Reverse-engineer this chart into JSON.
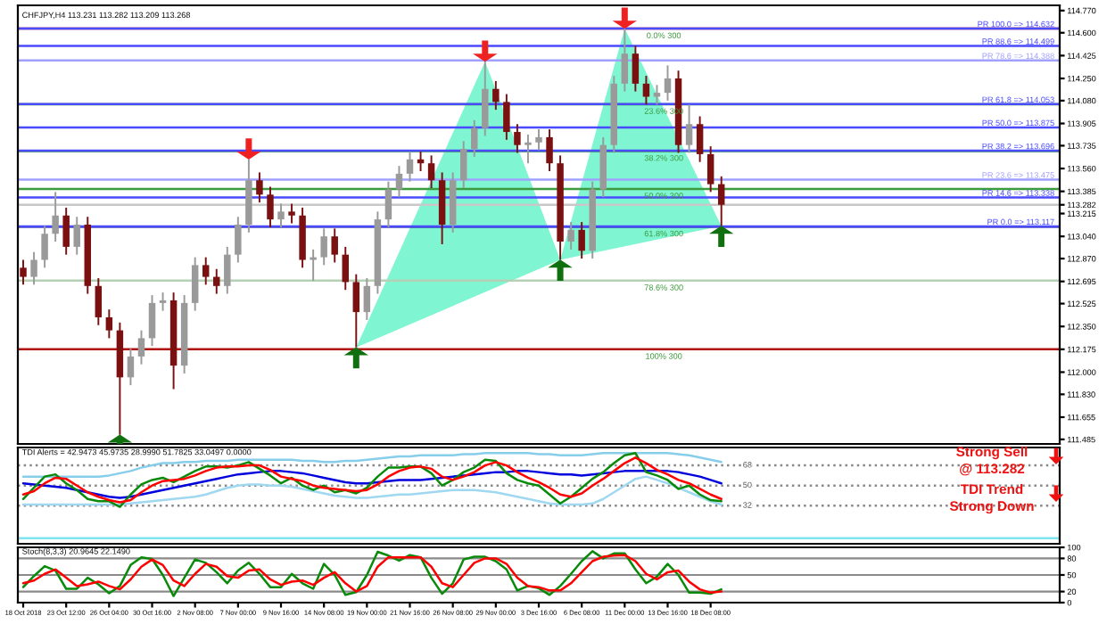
{
  "chart_data": [
    {
      "type": "candlestick",
      "title": "CHFJPY,H4 113.231 113.282 113.209 113.268",
      "categories": [
        null,
        null,
        null,
        null,
        null,
        null,
        null,
        null,
        null,
        null,
        null,
        null,
        null,
        null,
        null,
        null,
        null,
        null,
        null,
        null,
        null,
        null,
        null,
        null,
        null,
        null,
        null,
        null,
        null,
        null,
        null,
        null,
        null,
        null,
        null,
        null,
        null,
        null,
        null,
        null,
        null,
        null,
        null,
        null,
        null,
        null,
        null,
        null,
        null,
        null,
        null,
        null,
        null,
        null,
        null,
        null,
        null,
        null,
        null,
        null,
        null,
        null,
        null,
        null,
        null,
        null,
        null,
        null,
        null,
        null,
        null,
        null,
        null,
        null,
        null,
        null,
        null,
        null,
        null,
        null,
        null,
        null,
        null,
        null,
        null,
        null,
        null,
        null,
        null,
        null,
        null,
        null,
        null,
        null,
        null,
        null,
        null
      ],
      "ohlc": [
        [
          112.8,
          112.86,
          112.67,
          112.73
        ],
        [
          112.73,
          112.92,
          112.67,
          112.86
        ],
        [
          112.86,
          113.12,
          112.8,
          113.06
        ],
        [
          113.06,
          113.38,
          113.0,
          113.2
        ],
        [
          113.2,
          113.26,
          112.9,
          112.96
        ],
        [
          112.96,
          113.19,
          112.9,
          113.13
        ],
        [
          113.13,
          113.19,
          112.6,
          112.66
        ],
        [
          112.66,
          112.72,
          112.36,
          112.42
        ],
        [
          112.42,
          112.48,
          112.26,
          112.32
        ],
        [
          112.32,
          112.38,
          111.52,
          111.96
        ],
        [
          111.96,
          112.18,
          111.9,
          112.12
        ],
        [
          112.12,
          112.32,
          112.06,
          112.26
        ],
        [
          112.26,
          112.59,
          112.2,
          112.53
        ],
        [
          112.53,
          112.61,
          112.47,
          112.55
        ],
        [
          112.55,
          112.61,
          111.87,
          112.05
        ],
        [
          112.05,
          112.59,
          111.99,
          112.53
        ],
        [
          112.53,
          112.88,
          112.47,
          112.82
        ],
        [
          112.82,
          112.88,
          112.67,
          112.73
        ],
        [
          112.73,
          112.79,
          112.6,
          112.66
        ],
        [
          112.66,
          112.96,
          112.6,
          112.9
        ],
        [
          112.9,
          113.19,
          112.84,
          113.13
        ],
        [
          113.13,
          113.63,
          113.07,
          113.47
        ],
        [
          113.47,
          113.53,
          113.3,
          113.36
        ],
        [
          113.36,
          113.42,
          113.11,
          113.17
        ],
        [
          113.17,
          113.29,
          113.11,
          113.23
        ],
        [
          113.23,
          113.29,
          113.14,
          113.2
        ],
        [
          113.2,
          113.26,
          112.8,
          112.86
        ],
        [
          112.86,
          112.94,
          112.7,
          112.88
        ],
        [
          112.88,
          113.1,
          112.82,
          113.04
        ],
        [
          113.04,
          113.1,
          112.84,
          112.9
        ],
        [
          112.9,
          112.96,
          112.63,
          112.69
        ],
        [
          112.69,
          112.75,
          112.19,
          112.46
        ],
        [
          112.46,
          112.72,
          112.4,
          112.66
        ],
        [
          112.66,
          113.23,
          112.6,
          113.17
        ],
        [
          113.17,
          113.46,
          113.11,
          113.4
        ],
        [
          113.4,
          113.58,
          113.34,
          113.52
        ],
        [
          113.52,
          113.69,
          113.46,
          113.63
        ],
        [
          113.63,
          113.69,
          113.54,
          113.6
        ],
        [
          113.6,
          113.66,
          113.41,
          113.47
        ],
        [
          113.47,
          113.53,
          112.98,
          113.13
        ],
        [
          113.13,
          113.53,
          113.07,
          113.47
        ],
        [
          113.47,
          113.77,
          113.41,
          113.71
        ],
        [
          113.71,
          113.93,
          113.65,
          113.87
        ],
        [
          113.87,
          114.38,
          113.81,
          114.17
        ],
        [
          114.17,
          114.23,
          114.01,
          114.07
        ],
        [
          114.07,
          114.13,
          113.78,
          113.84
        ],
        [
          113.84,
          113.9,
          113.68,
          113.74
        ],
        [
          113.74,
          113.82,
          113.6,
          113.76
        ],
        [
          113.76,
          113.86,
          113.7,
          113.8
        ],
        [
          113.8,
          113.86,
          113.54,
          113.6
        ],
        [
          113.6,
          113.66,
          112.86,
          113.0
        ],
        [
          113.0,
          113.15,
          112.94,
          113.09
        ],
        [
          113.09,
          113.15,
          112.87,
          112.93
        ],
        [
          112.93,
          113.46,
          112.87,
          113.4
        ],
        [
          113.4,
          113.8,
          113.34,
          113.74
        ],
        [
          113.74,
          114.27,
          113.68,
          114.21
        ],
        [
          114.21,
          114.632,
          114.15,
          114.44
        ],
        [
          114.44,
          114.5,
          114.15,
          114.21
        ],
        [
          114.21,
          114.27,
          114.05,
          114.11
        ],
        [
          114.11,
          114.2,
          114.05,
          114.14
        ],
        [
          114.14,
          114.35,
          114.08,
          114.25
        ],
        [
          114.25,
          114.31,
          113.68,
          113.74
        ],
        [
          113.74,
          114.05,
          113.68,
          113.9
        ],
        [
          113.9,
          113.96,
          113.61,
          113.67
        ],
        [
          113.67,
          113.73,
          113.38,
          113.44
        ],
        [
          113.44,
          113.5,
          113.12,
          113.282
        ],
        null,
        null,
        null,
        null,
        null,
        null,
        null,
        null,
        null,
        null,
        null,
        null,
        null,
        null,
        null,
        null,
        null,
        null,
        null,
        null,
        null,
        null,
        null,
        null,
        null,
        null,
        null,
        null,
        null,
        null,
        null
      ],
      "ylim": [
        111.45,
        114.81
      ],
      "yticks": [
        {
          "value": 114.77,
          "label": "114.770"
        },
        {
          "value": 114.6,
          "label": "114.600"
        },
        {
          "value": 114.425,
          "label": "114.425"
        },
        {
          "value": 114.25,
          "label": "114.250"
        },
        {
          "value": 114.08,
          "label": "114.080"
        },
        {
          "value": 113.905,
          "label": "113.905"
        },
        {
          "value": 113.735,
          "label": "113.735"
        },
        {
          "value": 113.56,
          "label": "113.560"
        },
        {
          "value": 113.385,
          "label": "113.385"
        },
        {
          "value": 113.282,
          "label": "113.282"
        },
        {
          "value": 113.215,
          "label": "113.215"
        },
        {
          "value": 113.04,
          "label": "113.040"
        },
        {
          "value": 112.87,
          "label": "112.870"
        },
        {
          "value": 112.695,
          "label": "112.695"
        },
        {
          "value": 112.525,
          "label": "112.525"
        },
        {
          "value": 112.35,
          "label": "112.350"
        },
        {
          "value": 112.175,
          "label": "112.175"
        },
        {
          "value": 112.0,
          "label": "112.000"
        },
        {
          "value": 111.83,
          "label": "111.830"
        },
        {
          "value": 111.655,
          "label": "111.655"
        },
        {
          "value": 111.485,
          "label": "111.485"
        }
      ],
      "tick_labels": "y",
      "ref_lines": [
        {
          "axis": "y",
          "value": 113.282,
          "color": "#c8c8c8"
        },
        {
          "axis": "y",
          "value": 114.632,
          "color": "#b01010"
        },
        {
          "axis": "y",
          "value": 114.052,
          "color": "#3c9b3c"
        },
        {
          "axis": "y",
          "value": 113.693,
          "color": "#3c9b3c"
        },
        {
          "axis": "y",
          "value": 113.404,
          "color": "#3c9b3c"
        },
        {
          "axis": "y",
          "value": 113.114,
          "color": "#000080"
        },
        {
          "axis": "y",
          "value": 112.701,
          "color": "#b5d1b5"
        },
        {
          "axis": "y",
          "value": 112.175,
          "color": "#b01010"
        },
        {
          "axis": "y",
          "value": 114.632,
          "label": "PR 100.0 => 114.632",
          "color": "#4a4aff"
        },
        {
          "axis": "y",
          "value": 114.499,
          "label": "PR 88.6 => 114.499",
          "color": "#4a4aff"
        },
        {
          "axis": "y",
          "value": 114.388,
          "label": "PR 78.6 => 114.388",
          "color": "#a0a0ff"
        },
        {
          "axis": "y",
          "value": 114.053,
          "label": "PR 61.8 => 114.053",
          "color": "#4a4aff"
        },
        {
          "axis": "y",
          "value": 113.875,
          "label": "PR 50.0 => 113.875",
          "color": "#4a4aff"
        },
        {
          "axis": "y",
          "value": 113.696,
          "label": "PR 38.2 => 113.696",
          "color": "#4a4aff"
        },
        {
          "axis": "y",
          "value": 113.475,
          "label": "PR 23.6 => 113.475",
          "color": "#a0a0ff"
        },
        {
          "axis": "y",
          "value": 113.338,
          "label": "PR 14.6 => 113.338",
          "color": "#4a4aff"
        },
        {
          "axis": "y",
          "value": 113.117,
          "label": "PR 0.0 => 113.117",
          "color": "#4a4aff"
        }
      ],
      "annotations": [
        {
          "text": "0.0% 300",
          "y": 114.632
        },
        {
          "text": "23.6% 300",
          "y": 114.052
        },
        {
          "text": "38.2% 300",
          "y": 113.693
        },
        {
          "text": "50.0% 300",
          "y": 113.404
        },
        {
          "text": "61.8% 300",
          "y": 113.114
        },
        {
          "text": "78.6% 300",
          "y": 112.701
        },
        {
          "text": "100% 300",
          "y": 112.175
        }
      ]
    },
    {
      "type": "line",
      "title": "TDI Alerts = 42.9473 45.9735 28.9990 51.7825 33.0497 0.0000",
      "categories": [
        null,
        null,
        null,
        null,
        null,
        null,
        null,
        null,
        null,
        null,
        null,
        null,
        null,
        null,
        null,
        null,
        null,
        null,
        null,
        null,
        null,
        null,
        null,
        null,
        null,
        null,
        null,
        null,
        null,
        null,
        null,
        null,
        null,
        null,
        null,
        null,
        null,
        null,
        null,
        null,
        null,
        null,
        null,
        null,
        null,
        null,
        null,
        null,
        null,
        null,
        null,
        null,
        null,
        null,
        null,
        null,
        null,
        null,
        null,
        null,
        null,
        null,
        null,
        null,
        null,
        null,
        null,
        null,
        null,
        null,
        null,
        null,
        null,
        null,
        null,
        null,
        null,
        null,
        null,
        null,
        null,
        null,
        null,
        null,
        null,
        null,
        null,
        null,
        null,
        null,
        null,
        null,
        null,
        null,
        null,
        null,
        null
      ],
      "ylim": [
        -2,
        84
      ],
      "tick_labels": false,
      "series": [
        {
          "color": "#87ceeb",
          "values": [
            58,
            58,
            58,
            58,
            58,
            58,
            58,
            58,
            59,
            61,
            63,
            66,
            68,
            70,
            70,
            71,
            71,
            72,
            72,
            72,
            73,
            73,
            73,
            73,
            73,
            73,
            72,
            72,
            71,
            71,
            72,
            72,
            73,
            74,
            75,
            76,
            76,
            77,
            77,
            77,
            77,
            78,
            78,
            79,
            79,
            79,
            79,
            79,
            78,
            78,
            77,
            77,
            77,
            78,
            79,
            79,
            79,
            79,
            79,
            79,
            79,
            78,
            77,
            75,
            73,
            71,
            null,
            null,
            null,
            null,
            null,
            null,
            null,
            null,
            null,
            null,
            null,
            null,
            null,
            null,
            null,
            null,
            null,
            null,
            null,
            null,
            null,
            null,
            null,
            null,
            null,
            null,
            null,
            null,
            null,
            null,
            null
          ]
        },
        {
          "color": "#9fd8f0",
          "values": [
            33,
            33,
            33,
            33,
            33,
            33,
            33,
            33,
            33,
            33,
            34,
            35,
            36,
            37,
            38,
            39,
            40,
            42,
            45,
            48,
            50,
            51,
            51,
            50,
            50,
            49,
            47,
            45,
            43,
            41,
            40,
            39,
            39,
            40,
            41,
            42,
            42,
            43,
            44,
            45,
            46,
            46,
            46,
            45,
            44,
            42,
            40,
            38,
            36,
            34,
            33,
            33,
            33,
            34,
            38,
            44,
            50,
            56,
            58,
            55,
            52,
            48,
            44,
            40,
            36,
            33,
            null,
            null,
            null,
            null,
            null,
            null,
            null,
            null,
            null,
            null,
            null,
            null,
            null,
            null,
            null,
            null,
            null,
            null,
            null,
            null,
            null,
            null,
            null,
            null,
            null,
            null,
            null,
            null,
            null,
            null,
            null
          ]
        },
        {
          "color": "#0000dd",
          "values": [
            52,
            51,
            50,
            49,
            48,
            46,
            44,
            42,
            40,
            39,
            40,
            42,
            44,
            46,
            48,
            50,
            52,
            54,
            56,
            58,
            60,
            61,
            62,
            63,
            63,
            62,
            61,
            59,
            57,
            55,
            53,
            52,
            52,
            53,
            54,
            55,
            55,
            55,
            56,
            57,
            58,
            59,
            60,
            61,
            62,
            62,
            63,
            63,
            62,
            61,
            60,
            60,
            59,
            60,
            61,
            62,
            63,
            63,
            63,
            63,
            63,
            62,
            60,
            58,
            55,
            52,
            null,
            null,
            null,
            null,
            null,
            null,
            null,
            null,
            null,
            null,
            null,
            null,
            null,
            null,
            null,
            null,
            null,
            null,
            null,
            null,
            null,
            null,
            null,
            null,
            null,
            null,
            null,
            null,
            null,
            null,
            null
          ]
        },
        {
          "color": "#0a8a0a",
          "values": [
            38,
            48,
            58,
            60,
            52,
            46,
            38,
            36,
            36,
            31,
            42,
            51,
            55,
            57,
            53,
            58,
            63,
            67,
            67,
            66,
            68,
            71,
            65,
            59,
            52,
            57,
            50,
            46,
            50,
            44,
            46,
            43,
            48,
            58,
            66,
            66,
            67,
            67,
            61,
            50,
            55,
            62,
            66,
            73,
            72,
            61,
            55,
            52,
            50,
            42,
            34,
            40,
            48,
            56,
            62,
            70,
            77,
            79,
            62,
            59,
            55,
            47,
            50,
            42,
            37,
            36,
            null,
            null,
            null,
            null,
            null,
            null,
            null,
            null,
            null,
            null,
            null,
            null,
            null,
            null,
            null,
            null,
            null,
            null,
            null,
            null,
            null,
            null,
            null,
            null,
            null,
            null,
            null,
            null,
            null,
            null,
            null
          ]
        },
        {
          "color": "#ff0000",
          "values": [
            42,
            45,
            52,
            57,
            56,
            50,
            44,
            40,
            37,
            35,
            37,
            44,
            50,
            54,
            55,
            56,
            59,
            63,
            66,
            67,
            67,
            68,
            68,
            64,
            58,
            56,
            54,
            50,
            48,
            47,
            46,
            45,
            46,
            51,
            58,
            63,
            66,
            67,
            65,
            58,
            55,
            58,
            62,
            68,
            71,
            68,
            62,
            57,
            53,
            48,
            42,
            40,
            43,
            50,
            56,
            63,
            70,
            75,
            70,
            64,
            60,
            55,
            52,
            47,
            42,
            38,
            null,
            null,
            null,
            null,
            null,
            null,
            null,
            null,
            null,
            null,
            null,
            null,
            null,
            null,
            null,
            null,
            null,
            null,
            null,
            null,
            null,
            null,
            null,
            null,
            null,
            null,
            null,
            null,
            null,
            null,
            null
          ]
        }
      ],
      "ref_lines": [
        {
          "axis": "y",
          "value": 68,
          "label": "68",
          "line_style": "dotted",
          "color": "#888888"
        },
        {
          "axis": "y",
          "value": 50,
          "label": "50",
          "line_style": "dotted",
          "color": "#888888"
        },
        {
          "axis": "y",
          "value": 32,
          "label": "32",
          "line_style": "dotted",
          "color": "#888888"
        },
        {
          "axis": "y",
          "value": 3,
          "color": "#7fe5f0"
        }
      ],
      "annotations": [
        "Strong Sell",
        "@ 113.282",
        "TDI Trend",
        "Strong Down"
      ]
    },
    {
      "type": "line",
      "title": "Stoch(8,3,3) 20.9645 22.1490",
      "categories": [
        "18 Oct 2018",
        null,
        null,
        null,
        "23 Oct 12:00",
        null,
        null,
        null,
        "26 Oct 04:00",
        null,
        null,
        null,
        "30 Oct 16:00",
        null,
        null,
        null,
        "2 Nov 08:00",
        null,
        null,
        null,
        "7 Nov 00:00",
        null,
        null,
        null,
        "9 Nov 16:00",
        null,
        null,
        null,
        "14 Nov 08:00",
        null,
        null,
        null,
        "19 Nov 00:00",
        null,
        null,
        null,
        "21 Nov 16:00",
        null,
        null,
        null,
        "26 Nov 08:00",
        null,
        null,
        null,
        "29 Nov 00:00",
        null,
        null,
        null,
        "3 Dec 16:00",
        null,
        null,
        null,
        "6 Dec 08:00",
        null,
        null,
        null,
        "11 Dec 00:00",
        null,
        null,
        null,
        "13 Dec 16:00",
        null,
        null,
        null,
        "18 Dec 08:00",
        null,
        null,
        null,
        null,
        null,
        null,
        null,
        null,
        null,
        null,
        null,
        null,
        null,
        null,
        null,
        null,
        null,
        null,
        null,
        null,
        null,
        null,
        null,
        null,
        null,
        null,
        null,
        null,
        null,
        null,
        null,
        null
      ],
      "ylim": [
        0,
        100
      ],
      "yticks": [
        0,
        20,
        50,
        80,
        100
      ],
      "grid": "y",
      "series": [
        {
          "color": "#0a8a0a",
          "values": [
            28,
            48,
            66,
            58,
            25,
            25,
            45,
            33,
            17,
            30,
            68,
            82,
            79,
            50,
            12,
            45,
            78,
            72,
            55,
            35,
            58,
            72,
            52,
            28,
            28,
            52,
            35,
            25,
            70,
            50,
            14,
            19,
            50,
            92,
            85,
            76,
            86,
            82,
            45,
            16,
            35,
            78,
            83,
            83,
            75,
            60,
            22,
            30,
            26,
            14,
            30,
            52,
            75,
            93,
            80,
            89,
            89,
            60,
            35,
            47,
            70,
            50,
            18,
            18,
            16,
            24,
            null,
            null,
            null,
            null,
            null,
            null,
            null,
            null,
            null,
            null,
            null,
            null,
            null,
            null,
            null,
            null,
            null,
            null,
            null,
            null,
            null,
            null,
            null,
            null,
            null,
            null,
            null,
            null,
            null,
            null,
            null
          ]
        },
        {
          "color": "#ff0000",
          "values": [
            35,
            40,
            52,
            60,
            45,
            30,
            33,
            38,
            30,
            24,
            42,
            65,
            78,
            68,
            40,
            30,
            52,
            70,
            65,
            48,
            45,
            58,
            60,
            42,
            32,
            38,
            40,
            32,
            45,
            55,
            35,
            20,
            30,
            65,
            82,
            82,
            82,
            82,
            65,
            35,
            28,
            50,
            72,
            80,
            80,
            70,
            45,
            30,
            28,
            22,
            22,
            35,
            55,
            75,
            83,
            85,
            86,
            75,
            52,
            42,
            55,
            58,
            38,
            24,
            18,
            20,
            null,
            null,
            null,
            null,
            null,
            null,
            null,
            null,
            null,
            null,
            null,
            null,
            null,
            null,
            null,
            null,
            null,
            null,
            null,
            null,
            null,
            null,
            null,
            null,
            null,
            null,
            null,
            null,
            null,
            null,
            null
          ]
        }
      ]
    }
  ]
}
